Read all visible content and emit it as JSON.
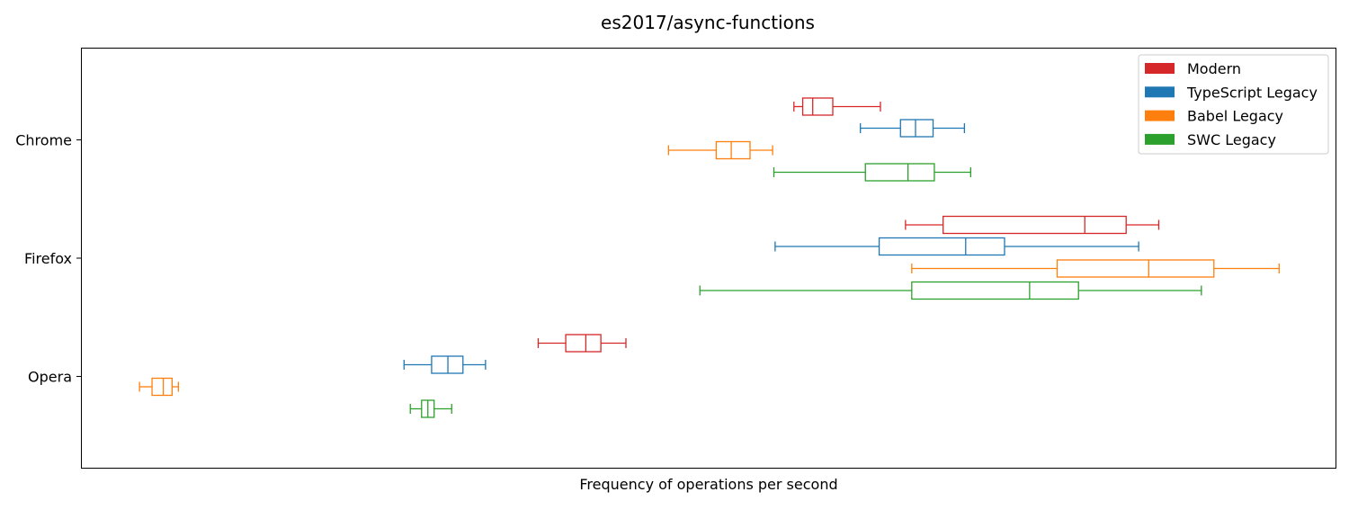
{
  "chart_data": {
    "type": "boxplot",
    "orientation": "horizontal",
    "title": "es2017/async-functions",
    "xlabel": "Frequency of operations per second",
    "ylabel": "",
    "x_ticks_visible": false,
    "xlim": [
      0,
      100
    ],
    "grid": false,
    "legend_position": "top-right",
    "categories": [
      "Chrome",
      "Firefox",
      "Opera"
    ],
    "series": [
      {
        "name": "Modern",
        "color": "#d62728",
        "boxes": [
          {
            "category": "Chrome",
            "whislo": 56.8,
            "q1": 57.5,
            "med": 58.3,
            "q3": 59.9,
            "whishi": 63.7
          },
          {
            "category": "Firefox",
            "whislo": 65.7,
            "q1": 68.7,
            "med": 80.0,
            "q3": 83.3,
            "whishi": 85.9
          },
          {
            "category": "Opera",
            "whislo": 36.4,
            "q1": 38.6,
            "med": 40.2,
            "q3": 41.4,
            "whishi": 43.4
          }
        ]
      },
      {
        "name": "TypeScript Legacy",
        "color": "#1f77b4",
        "boxes": [
          {
            "category": "Chrome",
            "whislo": 62.1,
            "q1": 65.3,
            "med": 66.5,
            "q3": 67.9,
            "whishi": 70.4
          },
          {
            "category": "Firefox",
            "whislo": 55.3,
            "q1": 63.6,
            "med": 70.5,
            "q3": 73.6,
            "whishi": 84.3
          },
          {
            "category": "Opera",
            "whislo": 25.7,
            "q1": 27.9,
            "med": 29.2,
            "q3": 30.4,
            "whishi": 32.2
          }
        ]
      },
      {
        "name": "Babel Legacy",
        "color": "#ff7f0e",
        "boxes": [
          {
            "category": "Chrome",
            "whislo": 46.8,
            "q1": 50.6,
            "med": 51.8,
            "q3": 53.3,
            "whishi": 55.1
          },
          {
            "category": "Firefox",
            "whislo": 66.2,
            "q1": 77.8,
            "med": 85.1,
            "q3": 90.3,
            "whishi": 95.5
          },
          {
            "category": "Opera",
            "whislo": 4.6,
            "q1": 5.6,
            "med": 6.5,
            "q3": 7.2,
            "whishi": 7.7
          }
        ]
      },
      {
        "name": "SWC Legacy",
        "color": "#2ca02c",
        "boxes": [
          {
            "category": "Chrome",
            "whislo": 55.2,
            "q1": 62.5,
            "med": 65.9,
            "q3": 68.0,
            "whishi": 70.9
          },
          {
            "category": "Firefox",
            "whislo": 49.3,
            "q1": 66.2,
            "med": 75.6,
            "q3": 79.5,
            "whishi": 89.3
          },
          {
            "category": "Opera",
            "whislo": 26.2,
            "q1": 27.1,
            "med": 27.6,
            "q3": 28.1,
            "whishi": 29.5
          }
        ]
      }
    ]
  }
}
